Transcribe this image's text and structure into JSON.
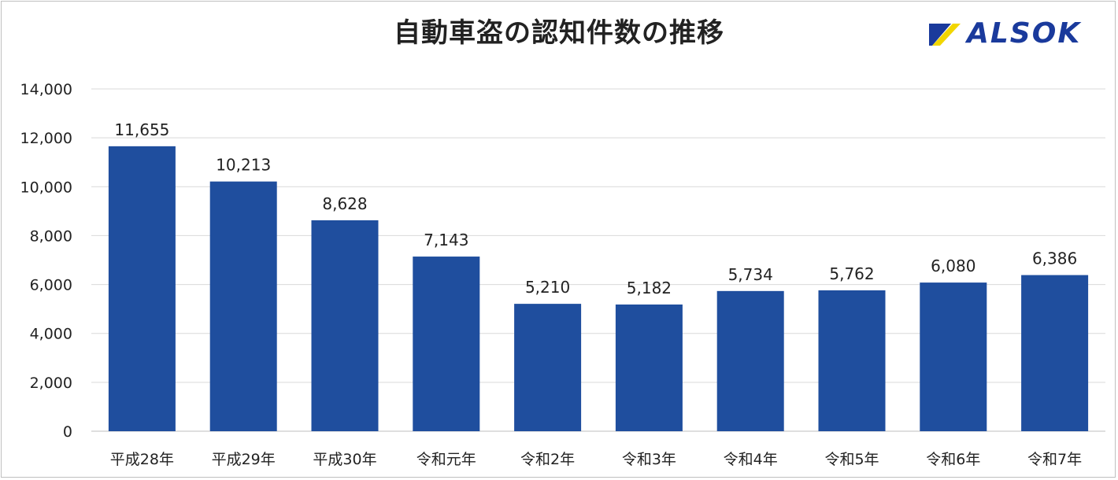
{
  "chart_data": {
    "type": "bar",
    "title": "自動車盗の認知件数の推移",
    "categories": [
      "平成28年",
      "平成29年",
      "平成30年",
      "令和元年",
      "令和2年",
      "令和3年",
      "令和4年",
      "令和5年",
      "令和6年",
      "令和7年"
    ],
    "values": [
      11655,
      10213,
      8628,
      7143,
      5210,
      5182,
      5734,
      5762,
      6080,
      6386
    ],
    "data_labels": [
      "11,655",
      "10,213",
      "8,628",
      "7,143",
      "5,210",
      "5,182",
      "5,734",
      "5,762",
      "6,080",
      "6,386"
    ],
    "yticks": [
      0,
      2000,
      4000,
      6000,
      8000,
      10000,
      12000,
      14000
    ],
    "ytick_labels": [
      "0",
      "2,000",
      "4,000",
      "6,000",
      "8,000",
      "10,000",
      "12,000",
      "14,000"
    ],
    "ylim": [
      0,
      14000
    ],
    "grid": true,
    "legend": "none",
    "bar_color": "#1f4e9e"
  },
  "logo": {
    "text": "ALSOK",
    "color": "#1a3a9c",
    "accent_color": "#f2d600"
  }
}
